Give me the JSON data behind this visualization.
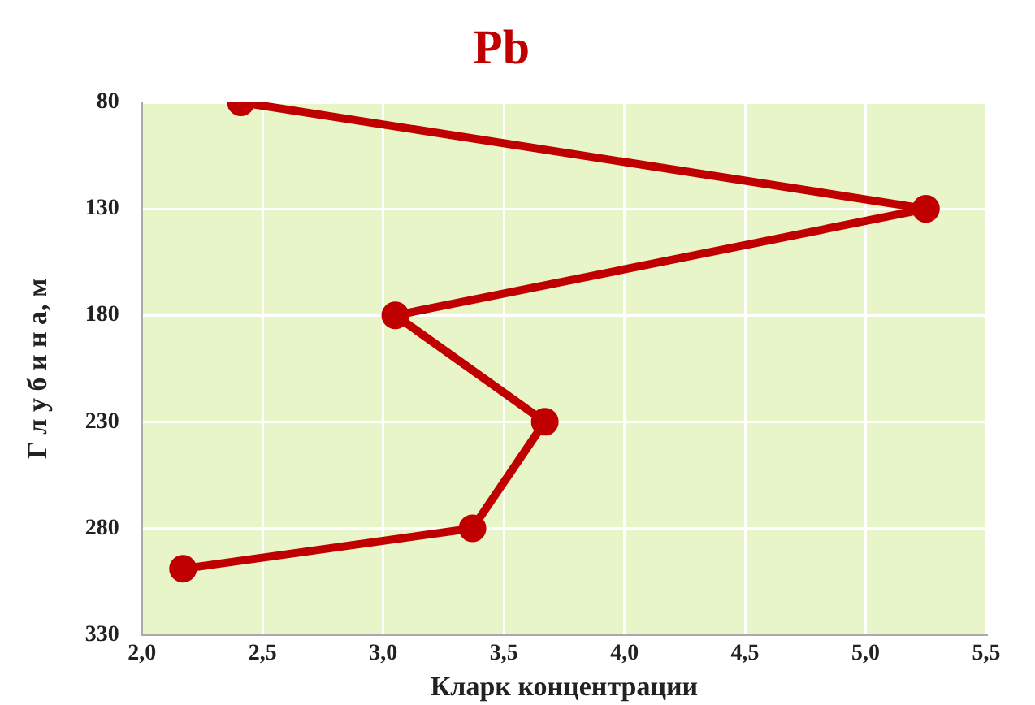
{
  "chart_data": {
    "type": "line",
    "title": "Pb",
    "xlabel": "Кларк концентрации",
    "ylabel": "Г л у б и н а, м",
    "x": [
      2.41,
      5.25,
      3.05,
      3.67,
      3.37,
      2.17
    ],
    "series": [
      {
        "color": "#c00000",
        "values": [
          80,
          130,
          180,
          230,
          280,
          299
        ]
      }
    ],
    "xlim": [
      2.0,
      5.5
    ],
    "xticks": [
      {
        "value": 2.0,
        "label": "2,0"
      },
      {
        "value": 2.5,
        "label": "2,5"
      },
      {
        "value": 3.0,
        "label": "3,0"
      },
      {
        "value": 3.5,
        "label": "3,5"
      },
      {
        "value": 4.0,
        "label": "4,0"
      },
      {
        "value": 4.5,
        "label": "4,5"
      },
      {
        "value": 5.0,
        "label": "5,0"
      },
      {
        "value": 5.5,
        "label": "5,5"
      }
    ],
    "ylim": [
      330,
      80
    ],
    "yticks": [
      80,
      130,
      180,
      230,
      280,
      330
    ],
    "grid": true,
    "legend": false,
    "marker": "circle",
    "line_style": "solid"
  }
}
